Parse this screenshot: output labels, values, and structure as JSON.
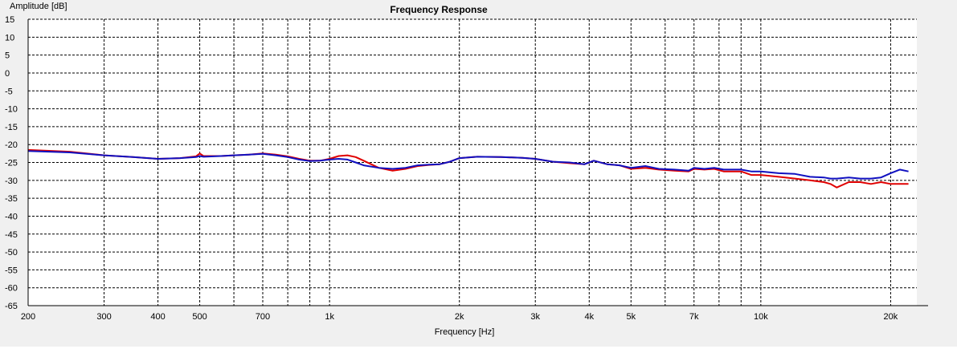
{
  "chart_data": {
    "type": "line",
    "title": "Frequency Response",
    "xlabel": "Frequency [Hz]",
    "ylabel": "Amplitude [dB]",
    "xscale": "log",
    "xlim": [
      200,
      23000
    ],
    "ylim": [
      -65,
      15
    ],
    "grid": true,
    "x_tick_labels": [
      {
        "value": 200,
        "label": "200"
      },
      {
        "value": 300,
        "label": "300"
      },
      {
        "value": 400,
        "label": "400"
      },
      {
        "value": 500,
        "label": "500"
      },
      {
        "value": 700,
        "label": "700"
      },
      {
        "value": 1000,
        "label": "1k"
      },
      {
        "value": 2000,
        "label": "2k"
      },
      {
        "value": 3000,
        "label": "3k"
      },
      {
        "value": 4000,
        "label": "4k"
      },
      {
        "value": 5000,
        "label": "5k"
      },
      {
        "value": 7000,
        "label": "7k"
      },
      {
        "value": 10000,
        "label": "10k"
      },
      {
        "value": 20000,
        "label": "20k"
      }
    ],
    "x_minor_grid": [
      600,
      800,
      900,
      6000,
      8000,
      9000
    ],
    "y_ticks": [
      15,
      10,
      5,
      0,
      -5,
      -10,
      -15,
      -20,
      -25,
      -30,
      -35,
      -40,
      -45,
      -50,
      -55,
      -60,
      -65
    ],
    "series": [
      {
        "color": "#e00000",
        "x": [
          200,
          250,
          300,
          350,
          400,
          450,
          490,
          500,
          510,
          560,
          600,
          650,
          700,
          750,
          800,
          850,
          900,
          950,
          1000,
          1050,
          1100,
          1150,
          1200,
          1300,
          1400,
          1500,
          1600,
          1700,
          1800,
          1900,
          2000,
          2200,
          2500,
          2800,
          3000,
          3300,
          3600,
          3900,
          4100,
          4400,
          4700,
          5000,
          5400,
          5800,
          6300,
          6800,
          7000,
          7400,
          7800,
          8200,
          8600,
          9000,
          9500,
          10000,
          11000,
          12000,
          13000,
          14000,
          14500,
          15000,
          16000,
          17000,
          18000,
          19000,
          20000,
          21000,
          22000
        ],
        "y": [
          -21.5,
          -22,
          -23,
          -23.5,
          -24,
          -23.8,
          -23.3,
          -22.5,
          -23.2,
          -23.2,
          -23,
          -22.8,
          -22.5,
          -22.8,
          -23.3,
          -24,
          -24.5,
          -24.5,
          -24,
          -23.2,
          -23,
          -23.5,
          -24.5,
          -26.5,
          -27.3,
          -26.8,
          -26,
          -25.7,
          -25.5,
          -24.8,
          -23.8,
          -23.4,
          -23.5,
          -23.7,
          -24,
          -24.8,
          -25.2,
          -25.5,
          -24.5,
          -25.5,
          -25.8,
          -26.8,
          -26.5,
          -27,
          -27.3,
          -27.5,
          -26.8,
          -27,
          -26.8,
          -27.5,
          -27.5,
          -27.5,
          -28.5,
          -28.5,
          -29,
          -29.5,
          -30,
          -30.5,
          -31,
          -32,
          -30.5,
          -30.5,
          -31,
          -30.5,
          -31,
          -31,
          -31
        ]
      },
      {
        "color": "#1010c0",
        "x": [
          200,
          250,
          300,
          350,
          400,
          450,
          490,
          500,
          510,
          560,
          600,
          650,
          700,
          750,
          800,
          850,
          900,
          950,
          1000,
          1050,
          1100,
          1150,
          1200,
          1300,
          1400,
          1500,
          1600,
          1700,
          1800,
          1900,
          2000,
          2200,
          2500,
          2800,
          3000,
          3300,
          3600,
          3900,
          4100,
          4400,
          4700,
          5000,
          5400,
          5800,
          6300,
          6800,
          7000,
          7400,
          7800,
          8200,
          8600,
          9000,
          9500,
          10000,
          11000,
          12000,
          13000,
          14000,
          14500,
          15000,
          16000,
          17000,
          18000,
          19000,
          20000,
          21000,
          22000
        ],
        "y": [
          -21.8,
          -22.2,
          -23,
          -23.5,
          -24,
          -23.8,
          -23.5,
          -23.2,
          -23.4,
          -23.2,
          -23,
          -22.8,
          -22.6,
          -23,
          -23.5,
          -24.2,
          -24.6,
          -24.5,
          -24.2,
          -24,
          -24.2,
          -25,
          -25.8,
          -26.5,
          -26.8,
          -26.5,
          -25.8,
          -25.6,
          -25.5,
          -24.8,
          -23.8,
          -23.4,
          -23.5,
          -23.7,
          -24,
          -24.8,
          -25,
          -25.5,
          -24.5,
          -25.5,
          -25.8,
          -26.5,
          -26,
          -26.8,
          -27,
          -27.3,
          -26.5,
          -26.8,
          -26.5,
          -27,
          -27,
          -27,
          -27.5,
          -27.5,
          -28,
          -28.2,
          -29,
          -29.2,
          -29.5,
          -29.5,
          -29.2,
          -29.5,
          -29.5,
          -29.2,
          -28,
          -27,
          -27.5
        ]
      }
    ]
  }
}
